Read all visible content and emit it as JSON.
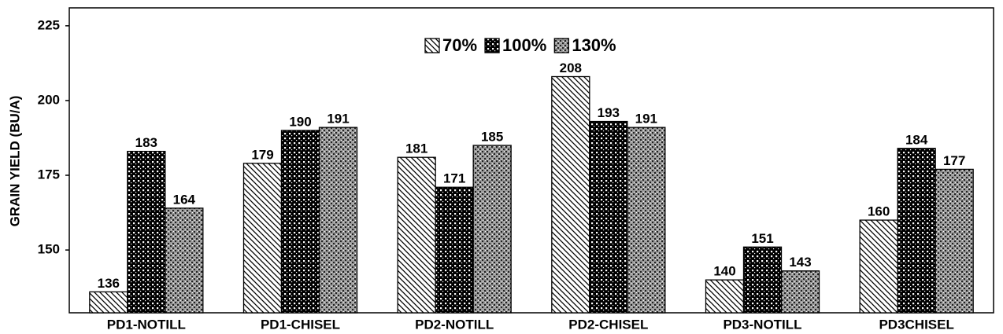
{
  "chart_data": {
    "type": "bar",
    "y_label": "GRAIN YIELD (BU/A)",
    "categories": [
      "PD1-NOTILL",
      "PD1-CHISEL",
      "PD2-NOTILL",
      "PD2-CHISEL",
      "PD3-NOTILL",
      "PD3CHISEL"
    ],
    "series": [
      {
        "name": "70%",
        "pattern": "diagonal",
        "color": "#000000",
        "values": [
          136,
          179,
          181,
          208,
          140,
          160
        ]
      },
      {
        "name": "100%",
        "pattern": "grid",
        "color": "#000000",
        "values": [
          183,
          190,
          171,
          193,
          151,
          184
        ]
      },
      {
        "name": "130%",
        "pattern": "speckle",
        "color": "#444444",
        "values": [
          164,
          191,
          185,
          191,
          143,
          177
        ]
      }
    ],
    "ylim": [
      129,
      231
    ],
    "yticks": [
      150,
      175,
      200,
      225
    ],
    "grid": false,
    "legend": "top"
  }
}
